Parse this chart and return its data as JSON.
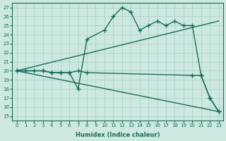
{
  "xlabel": "Humidex (Indice chaleur)",
  "bg_color": "#cce8e0",
  "grid_color": "#aacccc",
  "line_color": "#1a6b5a",
  "xlim": [
    -0.5,
    23.5
  ],
  "ylim": [
    14.5,
    27.5
  ],
  "xticks": [
    0,
    1,
    2,
    3,
    4,
    5,
    6,
    7,
    8,
    9,
    10,
    11,
    12,
    13,
    14,
    15,
    16,
    17,
    18,
    19,
    20,
    21,
    22,
    23
  ],
  "yticks": [
    15,
    16,
    17,
    18,
    19,
    20,
    21,
    22,
    23,
    24,
    25,
    26,
    27
  ],
  "series": [
    {
      "x": [
        0,
        1,
        2,
        3,
        4,
        5,
        6,
        7,
        8,
        10,
        11,
        12,
        13,
        14,
        15,
        16,
        17,
        18,
        19,
        20,
        21,
        22,
        23
      ],
      "y": [
        20,
        20,
        20,
        20,
        19.8,
        19.8,
        19.8,
        18,
        23.5,
        24.5,
        26,
        27,
        26.5,
        24.5,
        25,
        25.5,
        25,
        25.5,
        25,
        25,
        19.5,
        17,
        15.5
      ],
      "marker": "+",
      "markersize": 4,
      "linewidth": 1.0,
      "linestyle": "-"
    },
    {
      "x": [
        0,
        23
      ],
      "y": [
        20,
        25.5
      ],
      "marker": null,
      "markersize": 0,
      "linewidth": 1.0,
      "linestyle": "-"
    },
    {
      "x": [
        0,
        23
      ],
      "y": [
        20,
        15.5
      ],
      "marker": null,
      "markersize": 0,
      "linewidth": 1.0,
      "linestyle": "-"
    },
    {
      "x": [
        0,
        3,
        4,
        5,
        6,
        7,
        8,
        20,
        21,
        22,
        23
      ],
      "y": [
        20,
        20,
        19.8,
        19.8,
        19.8,
        20,
        19.8,
        19.5,
        19.5,
        17.0,
        15.5
      ],
      "marker": "+",
      "markersize": 4,
      "linewidth": 1.0,
      "linestyle": "-"
    }
  ]
}
